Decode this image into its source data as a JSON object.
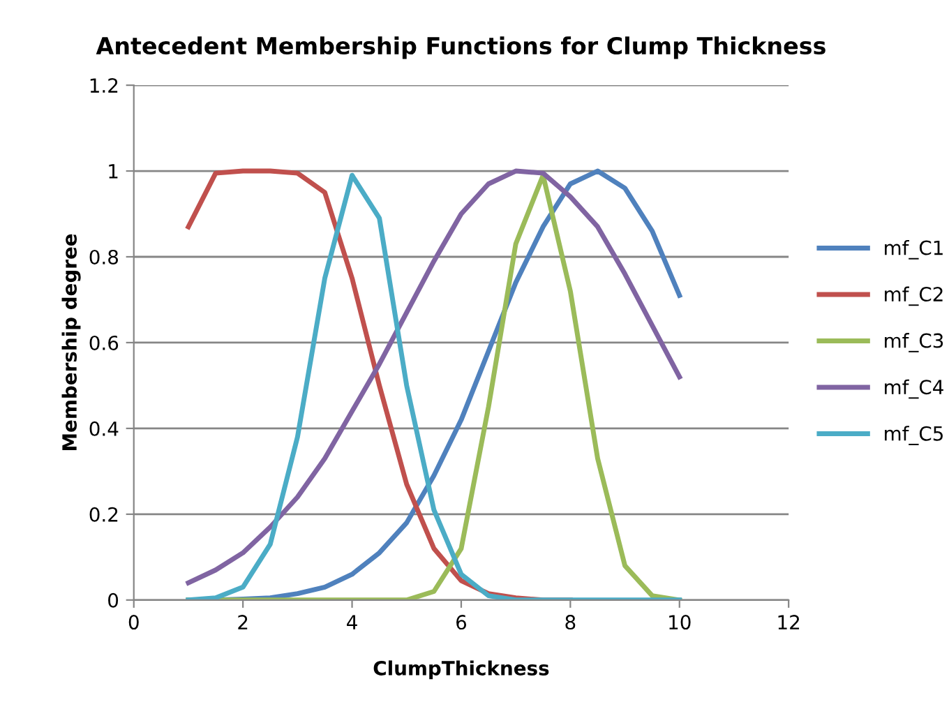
{
  "chart_data": {
    "type": "line",
    "title": "Antecedent Membership Functions for Clump Thickness",
    "xlabel": "ClumpThickness",
    "ylabel": "Membership degree",
    "x": [
      1,
      1.5,
      2,
      2.5,
      3,
      3.5,
      4,
      4.5,
      5,
      5.5,
      6,
      6.5,
      7,
      7.5,
      8,
      8.5,
      9,
      9.5,
      10
    ],
    "series": [
      {
        "name": "mf_C1",
        "color": "#4f81bd",
        "values": [
          0,
          0,
          0.002,
          0.005,
          0.015,
          0.03,
          0.06,
          0.11,
          0.18,
          0.29,
          0.42,
          0.58,
          0.74,
          0.87,
          0.97,
          1.0,
          0.96,
          0.86,
          0.71
        ]
      },
      {
        "name": "mf_C2",
        "color": "#c0504d",
        "values": [
          0.87,
          0.995,
          1.0,
          1.0,
          0.995,
          0.95,
          0.75,
          0.5,
          0.27,
          0.12,
          0.045,
          0.015,
          0.005,
          0,
          0,
          null,
          null,
          null,
          null
        ]
      },
      {
        "name": "mf_C3",
        "color": "#9bbb59",
        "values": [
          0,
          0,
          0,
          0,
          0,
          0,
          0,
          0,
          0,
          0.02,
          0.12,
          0.45,
          0.83,
          0.99,
          0.72,
          0.33,
          0.08,
          0.01,
          0
        ]
      },
      {
        "name": "mf_C4",
        "color": "#8064a2",
        "values": [
          0.04,
          0.07,
          0.11,
          0.17,
          0.24,
          0.33,
          0.44,
          0.55,
          0.67,
          0.79,
          0.9,
          0.97,
          1.0,
          0.995,
          0.94,
          0.87,
          0.76,
          0.64,
          0.52
        ]
      },
      {
        "name": "mf_C5",
        "color": "#4bacc6",
        "values": [
          0,
          0.005,
          0.03,
          0.13,
          0.38,
          0.75,
          0.99,
          0.89,
          0.5,
          0.21,
          0.06,
          0.01,
          0,
          0,
          0,
          0,
          0,
          0,
          0
        ]
      }
    ],
    "xlim": [
      0,
      12
    ],
    "xticks": [
      0,
      2,
      4,
      6,
      8,
      10,
      12
    ],
    "ylim": [
      0,
      1.2
    ],
    "yticks": [
      0,
      0.2,
      0.4,
      0.6,
      0.8,
      1,
      1.2
    ],
    "grid": "y",
    "legend": "right",
    "marker": "none",
    "line_style": "solid"
  }
}
